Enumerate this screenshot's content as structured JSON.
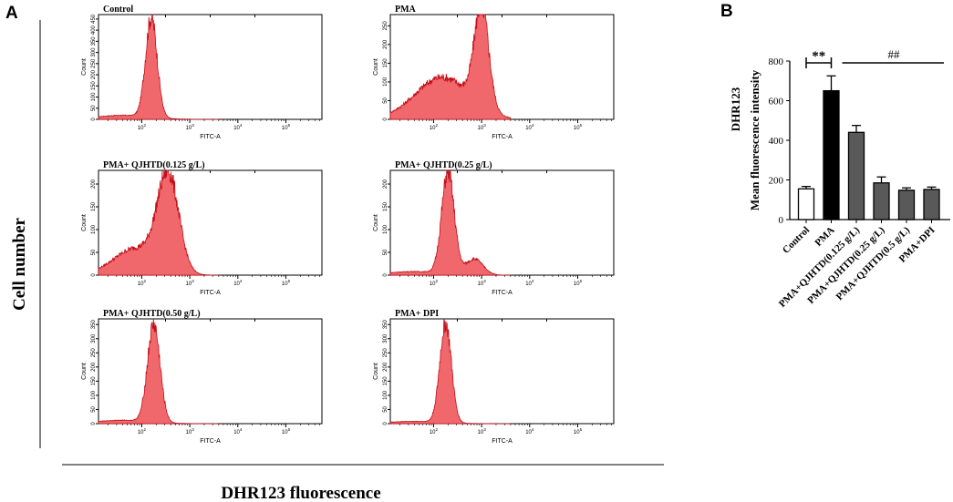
{
  "panel_labels": {
    "a": "A",
    "b": "B"
  },
  "y_axis_label": "Cell number",
  "x_axis_label": "DHR123 fluorescence",
  "colors": {
    "fill": "#f0686b",
    "edge": "#c40d18",
    "axis": "#000000",
    "bar_dark": "#000000",
    "bar_grey": "#595959",
    "bar_white": "#ffffff"
  },
  "chart_data": [
    {
      "type": "area",
      "title": "Control",
      "xlabel": "FITC-A",
      "ylabel": "Count",
      "x_scale": "log",
      "x_ticks": [
        "10^2",
        "10^3",
        "10^4",
        "10^5"
      ],
      "y_ticks": [
        "0",
        "50",
        "100",
        "150",
        "200",
        "250",
        "300",
        "350",
        "400",
        "450"
      ],
      "ylim": [
        0,
        470
      ],
      "peaks": [
        {
          "center_log10": 2.2,
          "width": 0.12,
          "height": 450
        }
      ],
      "baseline": 18
    },
    {
      "type": "area",
      "title": "PMA",
      "xlabel": "FITC-A",
      "ylabel": "Count",
      "x_scale": "log",
      "x_ticks": [
        "10^2",
        "10^3",
        "10^4",
        "10^5"
      ],
      "y_ticks": [
        "0",
        "50",
        "100",
        "150",
        "200",
        "250"
      ],
      "ylim": [
        0,
        280
      ],
      "peaks": [
        {
          "center_log10": 3.0,
          "width": 0.15,
          "height": 270
        },
        {
          "center_log10": 2.2,
          "width": 0.55,
          "height": 110
        }
      ],
      "baseline": 5
    },
    {
      "type": "area",
      "title": "PMA+ QJHTD(0.125 g/L)",
      "xlabel": "FITC-A",
      "ylabel": "Count",
      "x_scale": "log",
      "x_ticks": [
        "10^2",
        "10^3",
        "10^4",
        "10^5"
      ],
      "y_ticks": [
        "0",
        "50",
        "100",
        "150",
        "200"
      ],
      "ylim": [
        0,
        230
      ],
      "peaks": [
        {
          "center_log10": 2.55,
          "width": 0.22,
          "height": 210
        },
        {
          "center_log10": 1.9,
          "width": 0.45,
          "height": 55
        }
      ],
      "baseline": 5
    },
    {
      "type": "area",
      "title": "PMA+ QJHTD(0.25 g/L)",
      "xlabel": "FITC-A",
      "ylabel": "Count",
      "x_scale": "log",
      "x_ticks": [
        "10^2",
        "10^3",
        "10^4",
        "10^5"
      ],
      "y_ticks": [
        "0",
        "50",
        "100",
        "150",
        "200"
      ],
      "ylim": [
        0,
        230
      ],
      "peaks": [
        {
          "center_log10": 2.3,
          "width": 0.13,
          "height": 225
        },
        {
          "center_log10": 2.85,
          "width": 0.18,
          "height": 35
        }
      ],
      "baseline": 8
    },
    {
      "type": "area",
      "title": "PMA+ QJHTD(0.50 g/L)",
      "xlabel": "FITC-A",
      "ylabel": "Count",
      "x_scale": "log",
      "x_ticks": [
        "10^2",
        "10^3",
        "10^4",
        "10^5"
      ],
      "y_ticks": [
        "0",
        "50",
        "100",
        "150",
        "200",
        "250",
        "300",
        "350"
      ],
      "ylim": [
        0,
        370
      ],
      "peaks": [
        {
          "center_log10": 2.25,
          "width": 0.13,
          "height": 345
        }
      ],
      "baseline": 12
    },
    {
      "type": "area",
      "title": "PMA+ DPI",
      "xlabel": "FITC-A",
      "ylabel": "Count",
      "x_scale": "log",
      "x_ticks": [
        "10^2",
        "10^3",
        "10^4",
        "10^5"
      ],
      "y_ticks": [
        "0",
        "50",
        "100",
        "150",
        "200",
        "250",
        "300",
        "350"
      ],
      "ylim": [
        0,
        370
      ],
      "peaks": [
        {
          "center_log10": 2.25,
          "width": 0.12,
          "height": 350
        }
      ],
      "baseline": 8
    },
    {
      "type": "bar",
      "title": "DHR123",
      "ylabel": "Mean fluorescence intensity",
      "categories": [
        "Control",
        "PMA",
        "PMA+QJHTD(0.125 g/L)",
        "PMA+QJHTD(0.25 g/L)",
        "PMA+QJHTD(0.5 g/L)",
        "PMA+DPI"
      ],
      "values": [
        155,
        650,
        440,
        185,
        148,
        152
      ],
      "errors": [
        12,
        75,
        35,
        30,
        12,
        12
      ],
      "bar_colors": [
        "white",
        "black",
        "grey",
        "grey",
        "grey",
        "grey"
      ],
      "y_ticks": [
        "0",
        "200",
        "400",
        "600",
        "800"
      ],
      "ylim": [
        0,
        800
      ],
      "annotations": [
        "**",
        "##"
      ]
    }
  ]
}
